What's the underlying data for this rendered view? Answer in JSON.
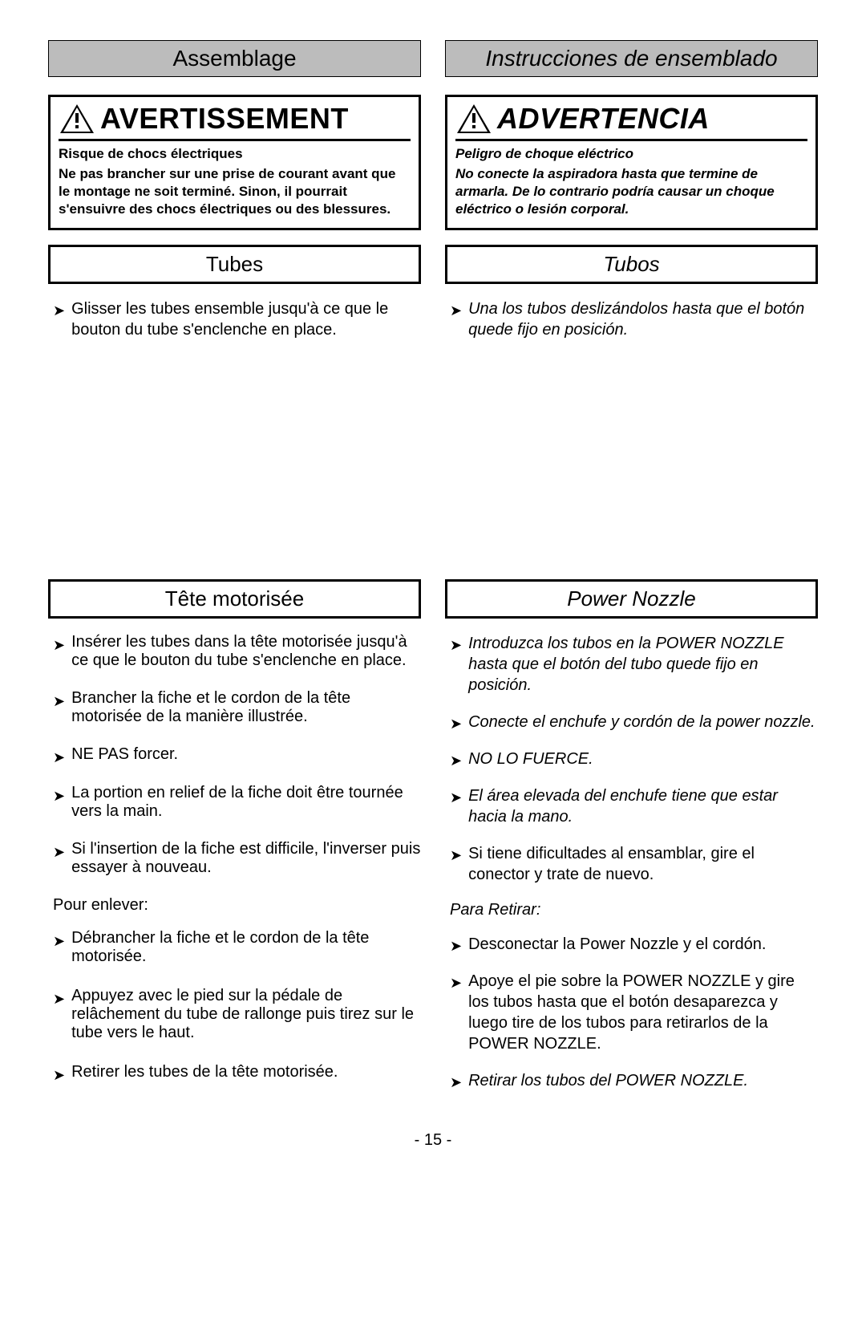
{
  "left": {
    "header": "Assemblage",
    "warning_title": "AVERTISSEMENT",
    "warning_sub": "Risque de chocs électriques",
    "warning_body": "Ne pas brancher sur une prise de courant avant que le montage ne soit terminé. Sinon, il pourrait s'ensuivre des chocs électriques ou des blessures.",
    "section1_title": "Tubes",
    "section1_bullets": [
      "Glisser les tubes ensemble jusqu'à ce que le bouton du tube s'enclenche en place."
    ],
    "section2_title": "Tête motorisée",
    "section2_bullets": [
      "Insérer les tubes dans la tête motorisée jusqu'à ce que le bouton du tube s'enclenche en place.",
      "Brancher la fiche et le cordon de la tête motorisée de la manière illustrée.",
      "NE PAS forcer.",
      "La portion en relief de la fiche doit être tournée vers la main.",
      "Si l'insertion de la fiche est difficile, l'inverser puis essayer à nouveau."
    ],
    "remove_label": "Pour enlever:",
    "remove_bullets": [
      "Débrancher la fiche et le cordon de la tête motorisée.",
      "Appuyez avec le pied sur la pédale de relâchement du tube de rallonge puis tirez sur le tube vers le haut.",
      "Retirer les tubes de la tête motorisée."
    ]
  },
  "right": {
    "header": "Instrucciones de ensemblado",
    "warning_title": "ADVERTENCIA",
    "warning_sub": "Peligro de choque eléctrico",
    "warning_body": "No conecte la aspiradora hasta que termine de armarla. De lo contrario podría causar un choque eléctrico o lesión corporal.",
    "section1_title": "Tubos",
    "section1_bullets": [
      "Una los tubos deslizándolos hasta que el botón quede fijo en posición."
    ],
    "section2_title": "Power Nozzle",
    "section2_bullets_italic": [
      "Introduzca los tubos en la POWER NOZZLE hasta que el botón del tubo quede fijo en posición.",
      "Conecte el  enchufe y cordón de la power nozzle.",
      "NO LO FUERCE.",
      "El área elevada del enchufe tiene que estar hacia la mano."
    ],
    "section2_bullets_plain": [
      "Si tiene dificultades al ensamblar, gire el conector y trate de nuevo."
    ],
    "remove_label": "Para Retirar:",
    "remove_bullets_plain": [
      "Desconectar la Power Nozzle y el cordón.",
      "Apoye el pie sobre la POWER NOZZLE y gire los tubos hasta que el botón desaparezca y luego tire de los tubos para retirarlos de la POWER NOZZLE."
    ],
    "remove_bullets_italic": [
      "Retirar los tubos del POWER NOZZLE."
    ]
  },
  "page_number": "- 15 -",
  "colors": {
    "header_bg": "#bcbcbc",
    "border": "#000000",
    "text": "#000000",
    "bg": "#ffffff"
  }
}
